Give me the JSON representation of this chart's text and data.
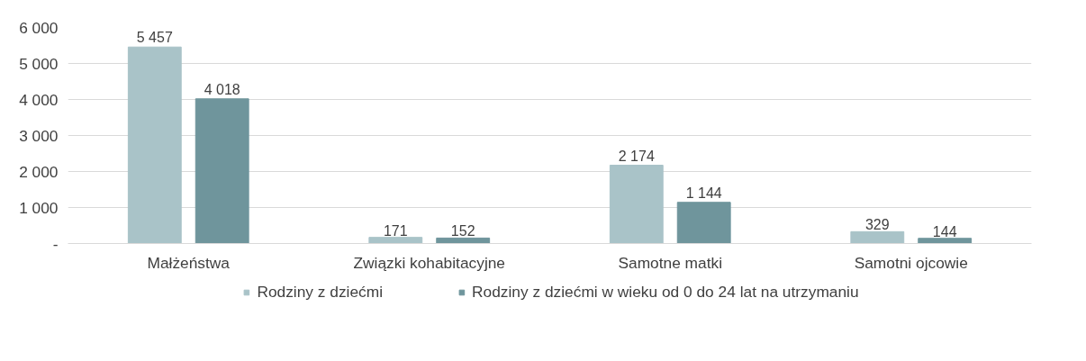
{
  "chart_data": {
    "type": "bar",
    "categories": [
      "Małżeństwa",
      "Związki kohabitacyjne",
      "Samotne matki",
      "Samotni ojcowie"
    ],
    "series": [
      {
        "name": "Rodziny z dziećmi",
        "color": "#a9c3c8",
        "values": [
          5457,
          171,
          2174,
          329
        ],
        "value_labels": [
          "5 457",
          "171",
          "2 174",
          "329"
        ]
      },
      {
        "name": "Rodziny z dziećmi w wieku od 0 do 24 lat na utrzymaniu",
        "color": "#6f959c",
        "values": [
          4018,
          152,
          1144,
          144
        ],
        "value_labels": [
          "4 018",
          "152",
          "1 144",
          "144"
        ]
      }
    ],
    "ylim": [
      0,
      6000
    ],
    "yticks": [
      {
        "value": 0,
        "label": "-"
      },
      {
        "value": 1000,
        "label": "1 000"
      },
      {
        "value": 2000,
        "label": "2 000"
      },
      {
        "value": 3000,
        "label": "3 000"
      },
      {
        "value": 4000,
        "label": "4 000"
      },
      {
        "value": 5000,
        "label": "5 000"
      },
      {
        "value": 6000,
        "label": "6 000"
      }
    ],
    "grid": "y",
    "legend": "bottom"
  }
}
